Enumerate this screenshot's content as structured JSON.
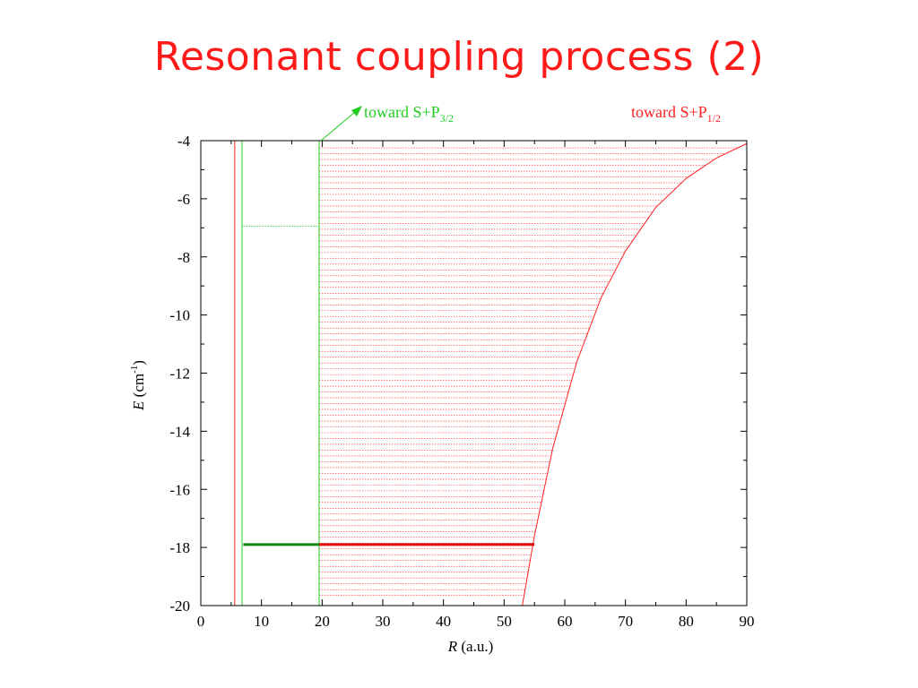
{
  "slide": {
    "title": "Resonant coupling process (2)"
  },
  "colors": {
    "title": "#ff1a1a",
    "red_curve": "#ff2020",
    "green_curve": "#22cc22",
    "dark_green": "#118811",
    "dark_red": "#e01010"
  },
  "chart_data": {
    "type": "line",
    "title": "",
    "xlabel_italic": "R",
    "xlabel_rest": " (a.u.)",
    "ylabel_italic": "E",
    "ylabel_rest_a": " (cm",
    "ylabel_sup": "-1",
    "ylabel_rest_b": ")",
    "xlim": [
      0,
      90
    ],
    "ylim": [
      -20,
      -4
    ],
    "x_ticks": [
      "0",
      "10",
      "20",
      "30",
      "40",
      "50",
      "60",
      "70",
      "80",
      "90"
    ],
    "y_ticks": [
      "-4",
      "-6",
      "-8",
      "-10",
      "-12",
      "-14",
      "-16",
      "-18",
      "-20"
    ],
    "x_tick_values": [
      0,
      10,
      20,
      30,
      40,
      50,
      60,
      70,
      80,
      90
    ],
    "y_tick_values": [
      -4,
      -6,
      -8,
      -10,
      -12,
      -14,
      -16,
      -18,
      -20
    ],
    "annotations": {
      "green_text": "toward S+P",
      "green_sub": "3/2",
      "red_text": "toward S+P",
      "red_sub": "1/2"
    },
    "series": [
      {
        "color": "red",
        "x": [
          5.6,
          5.6
        ],
        "y": [
          -20,
          -4
        ]
      },
      {
        "color": "green",
        "x": [
          6.8,
          6.8
        ],
        "y": [
          -20,
          -4
        ]
      },
      {
        "color": "green",
        "x": [
          19.5,
          19.5
        ],
        "y": [
          -20,
          -4
        ]
      },
      {
        "color": "red",
        "x": [
          53,
          55,
          58,
          62,
          66,
          70,
          75,
          80,
          85,
          90
        ],
        "y": [
          -20,
          -17.6,
          -14.6,
          -11.6,
          -9.4,
          -7.8,
          -6.3,
          -5.3,
          -4.6,
          -4.1
        ]
      }
    ],
    "green_dotted_level": {
      "y": -6.95,
      "x": [
        7,
        19.5
      ]
    },
    "bound_state_green": {
      "x": [
        7,
        19.5
      ],
      "y": -17.9
    },
    "bound_state_red": {
      "x": [
        19.5,
        55
      ],
      "y": -17.9
    },
    "continuum_levels": {
      "y_start": -19.65,
      "y_end": -4.2,
      "spacing": 0.2
    }
  }
}
